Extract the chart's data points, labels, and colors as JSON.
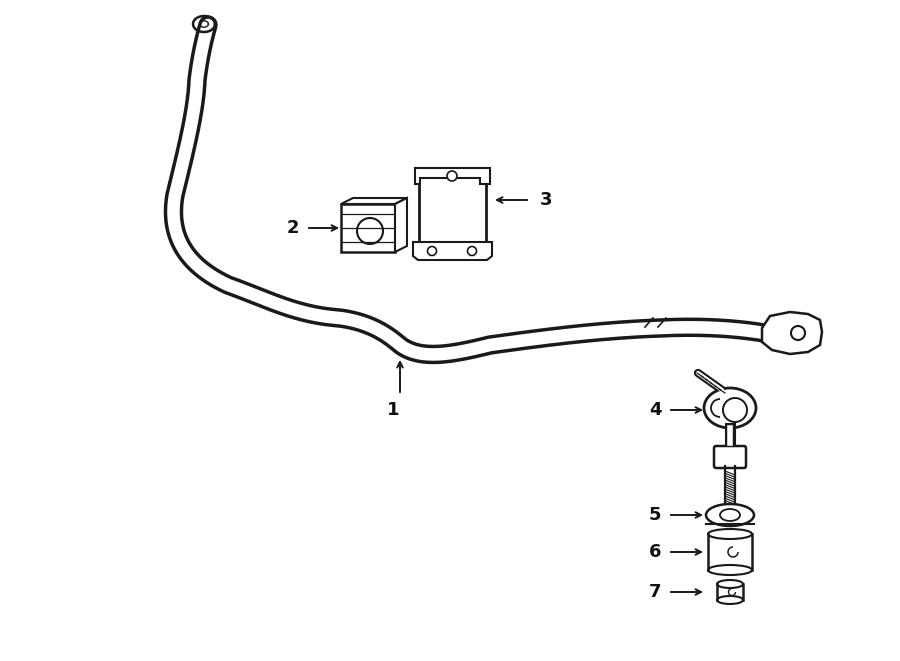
{
  "bg_color": "#ffffff",
  "line_color": "#1a1a1a",
  "label_color": "#111111",
  "fig_width": 9.0,
  "fig_height": 6.61,
  "dpi": 100
}
